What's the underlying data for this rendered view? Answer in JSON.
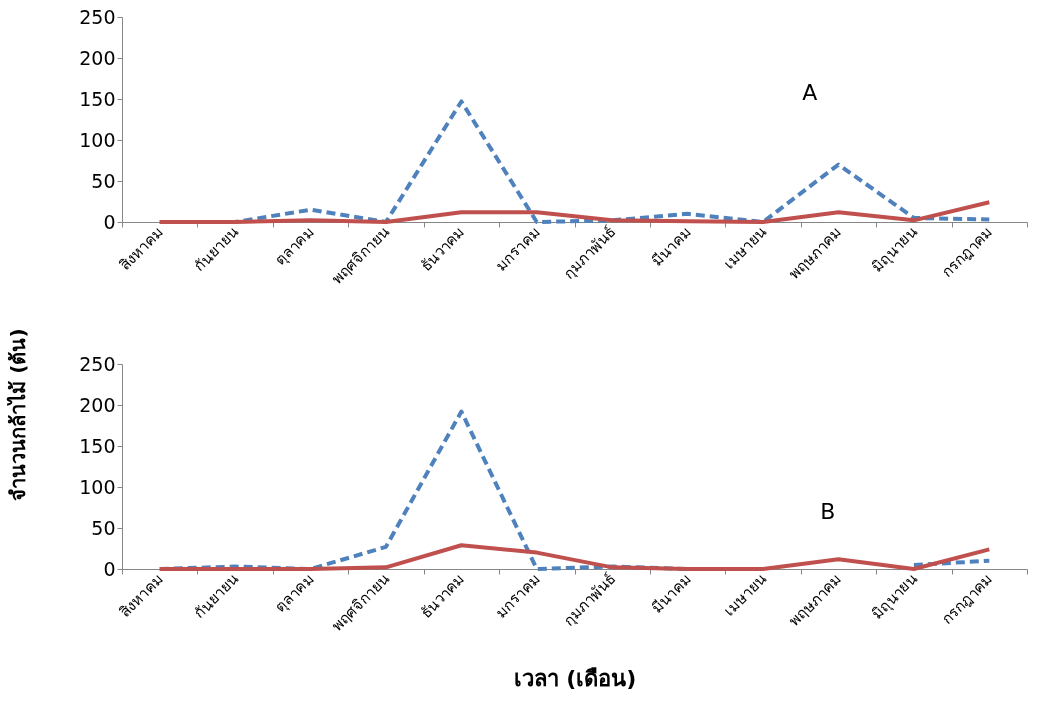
{
  "chart_data": [
    {
      "type": "line",
      "categories": [
        "สิงหาคม",
        "กันยายน",
        "ตุลาคม",
        "พฤศจิกายน",
        "ธันวาคม",
        "มกราคม",
        "กุมภาพันธ์",
        "มีนาคม",
        "เมษายน",
        "พฤษภาคม",
        "มิถุนายน",
        "กรกฎาคม"
      ],
      "series": [
        {
          "color": "#4f81bd",
          "line_style": "dashed",
          "values": [
            0,
            0,
            15,
            0,
            147,
            0,
            2,
            10,
            0,
            70,
            5,
            3
          ]
        },
        {
          "color": "#c0504d",
          "line_style": "solid",
          "values": [
            0,
            0,
            2,
            0,
            12,
            12,
            2,
            1,
            0,
            12,
            2,
            24
          ]
        }
      ],
      "ylim": [
        0,
        250
      ],
      "yticks": [
        0,
        50,
        100,
        150,
        200,
        250
      ],
      "grid": false,
      "annotations": [
        "A"
      ]
    },
    {
      "type": "line",
      "categories": [
        "สิงหาคม",
        "กันยายน",
        "ตุลาคม",
        "พฤศจิกายน",
        "ธันวาคม",
        "มกราคม",
        "กุมภาพันธ์",
        "มีนาคม",
        "เมษายน",
        "พฤษภาคม",
        "มิถุนายน",
        "กรกฎาคม"
      ],
      "series": [
        {
          "color": "#4f81bd",
          "line_style": "dashed",
          "values": [
            0,
            3,
            0,
            27,
            192,
            0,
            3,
            0,
            0,
            null,
            5,
            10
          ]
        },
        {
          "color": "#c0504d",
          "line_style": "solid",
          "values": [
            0,
            0,
            0,
            2,
            29,
            20,
            2,
            0,
            0,
            12,
            0,
            24
          ]
        }
      ],
      "ylim": [
        0,
        250
      ],
      "yticks": [
        0,
        50,
        100,
        150,
        200,
        250
      ],
      "grid": false,
      "annotations": [
        "B"
      ],
      "xlabel": "เวลา (เดือน)",
      "ylabel": "จำนวนกล้าไม้ (ต้น)"
    }
  ]
}
